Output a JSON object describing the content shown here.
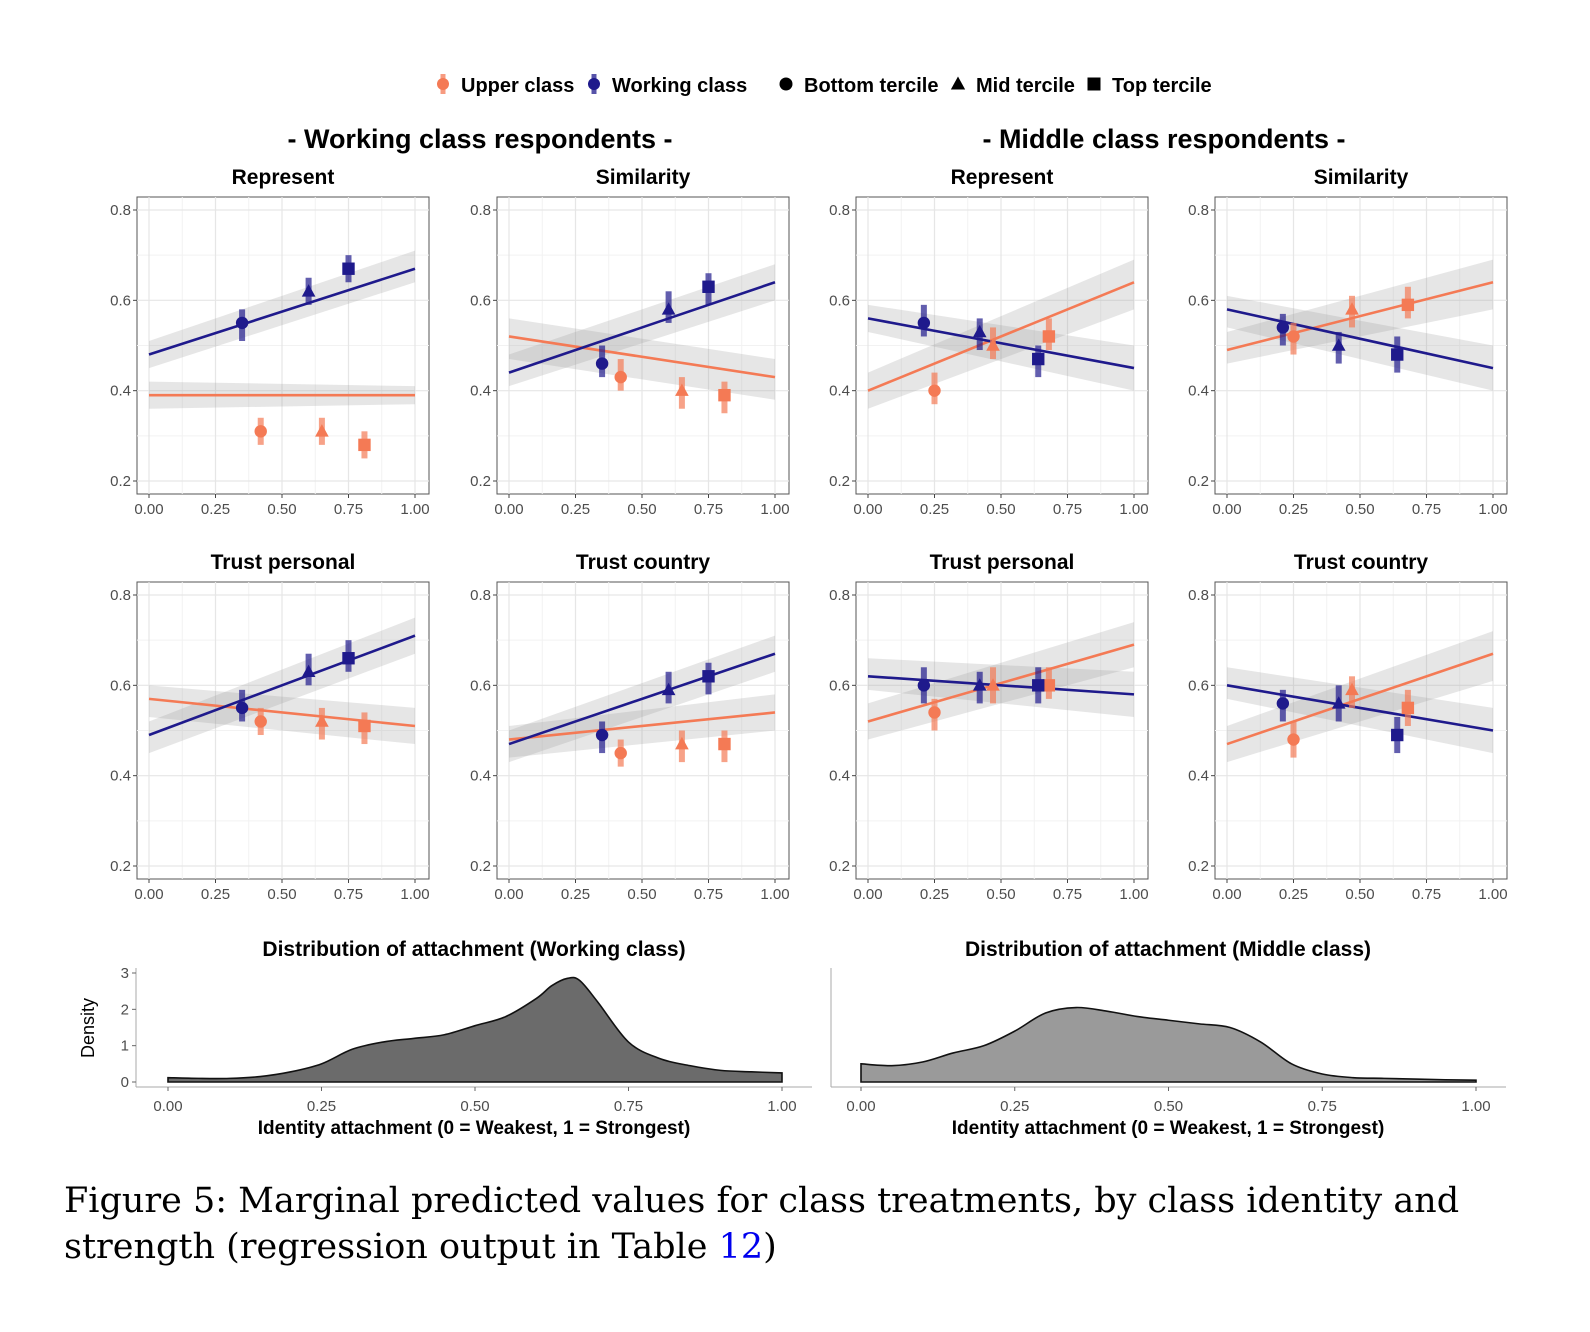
{
  "colors": {
    "upper": "#f47a55",
    "working": "#1f1a8c",
    "density_left": "#6b6b6b",
    "density_right": "#9a9a9a"
  },
  "legend": {
    "classes": [
      {
        "label": "Upper class",
        "color": "#f47a55"
      },
      {
        "label": "Working class",
        "color": "#1f1a8c"
      }
    ],
    "terciles": [
      {
        "label": "Bottom tercile",
        "shape": "circle"
      },
      {
        "label": "Mid tercile",
        "shape": "triangle"
      },
      {
        "label": "Top tercile",
        "shape": "square"
      }
    ]
  },
  "group_titles": [
    "- Working class respondents -",
    "- Middle class respondents -"
  ],
  "chart_data": [
    {
      "type": "scatter",
      "group": "Working class respondents",
      "title": "Represent",
      "xlim": [
        0,
        1
      ],
      "ylim": [
        0.2,
        0.8
      ],
      "x_ticks": [
        "0.00",
        "0.25",
        "0.50",
        "0.75",
        "1.00"
      ],
      "y_ticks": [
        "0.2",
        "0.4",
        "0.6",
        "0.8"
      ],
      "series": [
        {
          "name": "Upper class",
          "points": [
            {
              "tercile": "Bottom tercile",
              "x": 0.42,
              "y": 0.31,
              "lo": 0.28,
              "hi": 0.34
            },
            {
              "tercile": "Mid tercile",
              "x": 0.65,
              "y": 0.31,
              "lo": 0.28,
              "hi": 0.34
            },
            {
              "tercile": "Top tercile",
              "x": 0.81,
              "y": 0.28,
              "lo": 0.25,
              "hi": 0.31
            }
          ],
          "fit": [
            0.39,
            0.39
          ],
          "band": [
            [
              0.36,
              0.42
            ],
            [
              0.37,
              0.41
            ]
          ]
        },
        {
          "name": "Working class",
          "points": [
            {
              "tercile": "Bottom tercile",
              "x": 0.35,
              "y": 0.55,
              "lo": 0.51,
              "hi": 0.58
            },
            {
              "tercile": "Mid tercile",
              "x": 0.6,
              "y": 0.62,
              "lo": 0.59,
              "hi": 0.65
            },
            {
              "tercile": "Top tercile",
              "x": 0.75,
              "y": 0.67,
              "lo": 0.64,
              "hi": 0.7
            }
          ],
          "fit": [
            0.48,
            0.67
          ],
          "band": [
            [
              0.45,
              0.51
            ],
            [
              0.64,
              0.71
            ]
          ]
        }
      ]
    },
    {
      "type": "scatter",
      "group": "Working class respondents",
      "title": "Similarity",
      "xlim": [
        0,
        1
      ],
      "ylim": [
        0.2,
        0.8
      ],
      "x_ticks": [
        "0.00",
        "0.25",
        "0.50",
        "0.75",
        "1.00"
      ],
      "y_ticks": [
        "0.2",
        "0.4",
        "0.6",
        "0.8"
      ],
      "series": [
        {
          "name": "Upper class",
          "points": [
            {
              "tercile": "Bottom tercile",
              "x": 0.42,
              "y": 0.43,
              "lo": 0.4,
              "hi": 0.47
            },
            {
              "tercile": "Mid tercile",
              "x": 0.65,
              "y": 0.4,
              "lo": 0.36,
              "hi": 0.43
            },
            {
              "tercile": "Top tercile",
              "x": 0.81,
              "y": 0.39,
              "lo": 0.35,
              "hi": 0.42
            }
          ],
          "fit": [
            0.52,
            0.43
          ],
          "band": [
            [
              0.47,
              0.56
            ],
            [
              0.38,
              0.47
            ]
          ]
        },
        {
          "name": "Working class",
          "points": [
            {
              "tercile": "Bottom tercile",
              "x": 0.35,
              "y": 0.46,
              "lo": 0.43,
              "hi": 0.5
            },
            {
              "tercile": "Mid tercile",
              "x": 0.6,
              "y": 0.58,
              "lo": 0.55,
              "hi": 0.62
            },
            {
              "tercile": "Top tercile",
              "x": 0.75,
              "y": 0.63,
              "lo": 0.59,
              "hi": 0.66
            }
          ],
          "fit": [
            0.44,
            0.64
          ],
          "band": [
            [
              0.41,
              0.48
            ],
            [
              0.6,
              0.68
            ]
          ]
        }
      ]
    },
    {
      "type": "scatter",
      "group": "Middle class respondents",
      "title": "Represent",
      "xlim": [
        0,
        1
      ],
      "ylim": [
        0.2,
        0.8
      ],
      "x_ticks": [
        "0.00",
        "0.25",
        "0.50",
        "0.75",
        "1.00"
      ],
      "y_ticks": [
        "0.2",
        "0.4",
        "0.6",
        "0.8"
      ],
      "series": [
        {
          "name": "Upper class",
          "points": [
            {
              "tercile": "Bottom tercile",
              "x": 0.25,
              "y": 0.4,
              "lo": 0.37,
              "hi": 0.44
            },
            {
              "tercile": "Mid tercile",
              "x": 0.47,
              "y": 0.5,
              "lo": 0.47,
              "hi": 0.54
            },
            {
              "tercile": "Top tercile",
              "x": 0.68,
              "y": 0.52,
              "lo": 0.49,
              "hi": 0.56
            }
          ],
          "fit": [
            0.4,
            0.64
          ],
          "band": [
            [
              0.36,
              0.44
            ],
            [
              0.58,
              0.69
            ]
          ]
        },
        {
          "name": "Working class",
          "points": [
            {
              "tercile": "Bottom tercile",
              "x": 0.21,
              "y": 0.55,
              "lo": 0.52,
              "hi": 0.59
            },
            {
              "tercile": "Mid tercile",
              "x": 0.42,
              "y": 0.53,
              "lo": 0.49,
              "hi": 0.56
            },
            {
              "tercile": "Top tercile",
              "x": 0.64,
              "y": 0.47,
              "lo": 0.43,
              "hi": 0.5
            }
          ],
          "fit": [
            0.56,
            0.45
          ],
          "band": [
            [
              0.53,
              0.59
            ],
            [
              0.4,
              0.5
            ]
          ]
        }
      ]
    },
    {
      "type": "scatter",
      "group": "Middle class respondents",
      "title": "Similarity",
      "xlim": [
        0,
        1
      ],
      "ylim": [
        0.2,
        0.8
      ],
      "x_ticks": [
        "0.00",
        "0.25",
        "0.50",
        "0.75",
        "1.00"
      ],
      "y_ticks": [
        "0.2",
        "0.4",
        "0.6",
        "0.8"
      ],
      "series": [
        {
          "name": "Upper class",
          "points": [
            {
              "tercile": "Bottom tercile",
              "x": 0.25,
              "y": 0.52,
              "lo": 0.48,
              "hi": 0.55
            },
            {
              "tercile": "Mid tercile",
              "x": 0.47,
              "y": 0.58,
              "lo": 0.54,
              "hi": 0.61
            },
            {
              "tercile": "Top tercile",
              "x": 0.68,
              "y": 0.59,
              "lo": 0.56,
              "hi": 0.63
            }
          ],
          "fit": [
            0.49,
            0.64
          ],
          "band": [
            [
              0.46,
              0.53
            ],
            [
              0.58,
              0.69
            ]
          ]
        },
        {
          "name": "Working class",
          "points": [
            {
              "tercile": "Bottom tercile",
              "x": 0.21,
              "y": 0.54,
              "lo": 0.5,
              "hi": 0.57
            },
            {
              "tercile": "Mid tercile",
              "x": 0.42,
              "y": 0.5,
              "lo": 0.46,
              "hi": 0.53
            },
            {
              "tercile": "Top tercile",
              "x": 0.64,
              "y": 0.48,
              "lo": 0.44,
              "hi": 0.52
            }
          ],
          "fit": [
            0.58,
            0.45
          ],
          "band": [
            [
              0.54,
              0.61
            ],
            [
              0.4,
              0.5
            ]
          ]
        }
      ]
    },
    {
      "type": "scatter",
      "group": "Working class respondents",
      "title": "Trust personal",
      "xlim": [
        0,
        1
      ],
      "ylim": [
        0.2,
        0.8
      ],
      "x_ticks": [
        "0.00",
        "0.25",
        "0.50",
        "0.75",
        "1.00"
      ],
      "y_ticks": [
        "0.2",
        "0.4",
        "0.6",
        "0.8"
      ],
      "series": [
        {
          "name": "Upper class",
          "points": [
            {
              "tercile": "Bottom tercile",
              "x": 0.42,
              "y": 0.52,
              "lo": 0.49,
              "hi": 0.55
            },
            {
              "tercile": "Mid tercile",
              "x": 0.65,
              "y": 0.52,
              "lo": 0.48,
              "hi": 0.55
            },
            {
              "tercile": "Top tercile",
              "x": 0.81,
              "y": 0.51,
              "lo": 0.47,
              "hi": 0.54
            }
          ],
          "fit": [
            0.57,
            0.51
          ],
          "band": [
            [
              0.53,
              0.6
            ],
            [
              0.47,
              0.55
            ]
          ]
        },
        {
          "name": "Working class",
          "points": [
            {
              "tercile": "Bottom tercile",
              "x": 0.35,
              "y": 0.55,
              "lo": 0.52,
              "hi": 0.59
            },
            {
              "tercile": "Mid tercile",
              "x": 0.6,
              "y": 0.63,
              "lo": 0.6,
              "hi": 0.67
            },
            {
              "tercile": "Top tercile",
              "x": 0.75,
              "y": 0.66,
              "lo": 0.63,
              "hi": 0.7
            }
          ],
          "fit": [
            0.49,
            0.71
          ],
          "band": [
            [
              0.45,
              0.52
            ],
            [
              0.67,
              0.75
            ]
          ]
        }
      ]
    },
    {
      "type": "scatter",
      "group": "Working class respondents",
      "title": "Trust country",
      "xlim": [
        0,
        1
      ],
      "ylim": [
        0.2,
        0.8
      ],
      "x_ticks": [
        "0.00",
        "0.25",
        "0.50",
        "0.75",
        "1.00"
      ],
      "y_ticks": [
        "0.2",
        "0.4",
        "0.6",
        "0.8"
      ],
      "series": [
        {
          "name": "Upper class",
          "points": [
            {
              "tercile": "Bottom tercile",
              "x": 0.42,
              "y": 0.45,
              "lo": 0.42,
              "hi": 0.48
            },
            {
              "tercile": "Mid tercile",
              "x": 0.65,
              "y": 0.47,
              "lo": 0.43,
              "hi": 0.5
            },
            {
              "tercile": "Top tercile",
              "x": 0.81,
              "y": 0.47,
              "lo": 0.43,
              "hi": 0.5
            }
          ],
          "fit": [
            0.48,
            0.54
          ],
          "band": [
            [
              0.44,
              0.51
            ],
            [
              0.5,
              0.58
            ]
          ]
        },
        {
          "name": "Working class",
          "points": [
            {
              "tercile": "Bottom tercile",
              "x": 0.35,
              "y": 0.49,
              "lo": 0.45,
              "hi": 0.52
            },
            {
              "tercile": "Mid tercile",
              "x": 0.6,
              "y": 0.59,
              "lo": 0.56,
              "hi": 0.63
            },
            {
              "tercile": "Top tercile",
              "x": 0.75,
              "y": 0.62,
              "lo": 0.58,
              "hi": 0.65
            }
          ],
          "fit": [
            0.47,
            0.67
          ],
          "band": [
            [
              0.43,
              0.5
            ],
            [
              0.63,
              0.71
            ]
          ]
        }
      ]
    },
    {
      "type": "scatter",
      "group": "Middle class respondents",
      "title": "Trust personal",
      "xlim": [
        0,
        1
      ],
      "ylim": [
        0.2,
        0.8
      ],
      "x_ticks": [
        "0.00",
        "0.25",
        "0.50",
        "0.75",
        "1.00"
      ],
      "y_ticks": [
        "0.2",
        "0.4",
        "0.6",
        "0.8"
      ],
      "series": [
        {
          "name": "Upper class",
          "points": [
            {
              "tercile": "Bottom tercile",
              "x": 0.25,
              "y": 0.54,
              "lo": 0.5,
              "hi": 0.57
            },
            {
              "tercile": "Mid tercile",
              "x": 0.47,
              "y": 0.6,
              "lo": 0.56,
              "hi": 0.64
            },
            {
              "tercile": "Top tercile",
              "x": 0.68,
              "y": 0.6,
              "lo": 0.57,
              "hi": 0.64
            }
          ],
          "fit": [
            0.52,
            0.69
          ],
          "band": [
            [
              0.48,
              0.56
            ],
            [
              0.64,
              0.74
            ]
          ]
        },
        {
          "name": "Working class",
          "points": [
            {
              "tercile": "Bottom tercile",
              "x": 0.21,
              "y": 0.6,
              "lo": 0.56,
              "hi": 0.64
            },
            {
              "tercile": "Mid tercile",
              "x": 0.42,
              "y": 0.6,
              "lo": 0.56,
              "hi": 0.63
            },
            {
              "tercile": "Top tercile",
              "x": 0.64,
              "y": 0.6,
              "lo": 0.56,
              "hi": 0.64
            }
          ],
          "fit": [
            0.62,
            0.58
          ],
          "band": [
            [
              0.59,
              0.66
            ],
            [
              0.53,
              0.63
            ]
          ]
        }
      ]
    },
    {
      "type": "scatter",
      "group": "Middle class respondents",
      "title": "Trust country",
      "xlim": [
        0,
        1
      ],
      "ylim": [
        0.2,
        0.8
      ],
      "x_ticks": [
        "0.00",
        "0.25",
        "0.50",
        "0.75",
        "1.00"
      ],
      "y_ticks": [
        "0.2",
        "0.4",
        "0.6",
        "0.8"
      ],
      "series": [
        {
          "name": "Upper class",
          "points": [
            {
              "tercile": "Bottom tercile",
              "x": 0.25,
              "y": 0.48,
              "lo": 0.44,
              "hi": 0.52
            },
            {
              "tercile": "Mid tercile",
              "x": 0.47,
              "y": 0.59,
              "lo": 0.55,
              "hi": 0.62
            },
            {
              "tercile": "Top tercile",
              "x": 0.68,
              "y": 0.55,
              "lo": 0.51,
              "hi": 0.59
            }
          ],
          "fit": [
            0.47,
            0.67
          ],
          "band": [
            [
              0.43,
              0.51
            ],
            [
              0.61,
              0.72
            ]
          ]
        },
        {
          "name": "Working class",
          "points": [
            {
              "tercile": "Bottom tercile",
              "x": 0.21,
              "y": 0.56,
              "lo": 0.52,
              "hi": 0.59
            },
            {
              "tercile": "Mid tercile",
              "x": 0.42,
              "y": 0.56,
              "lo": 0.52,
              "hi": 0.6
            },
            {
              "tercile": "Top tercile",
              "x": 0.64,
              "y": 0.49,
              "lo": 0.45,
              "hi": 0.53
            }
          ],
          "fit": [
            0.6,
            0.5
          ],
          "band": [
            [
              0.57,
              0.64
            ],
            [
              0.45,
              0.55
            ]
          ]
        }
      ]
    },
    {
      "type": "area",
      "title": "Distribution of attachment (Working class)",
      "xlabel": "Identity attachment (0 = Weakest, 1 = Strongest)",
      "ylabel": "Density",
      "xlim": [
        0,
        1
      ],
      "ylim": [
        0,
        3
      ],
      "x_ticks": [
        "0.00",
        "0.25",
        "0.50",
        "0.75",
        "1.00"
      ],
      "y_ticks": [
        "0",
        "1",
        "2",
        "3"
      ],
      "x": [
        0,
        0.05,
        0.1,
        0.15,
        0.2,
        0.25,
        0.3,
        0.35,
        0.4,
        0.45,
        0.5,
        0.55,
        0.6,
        0.625,
        0.65,
        0.67,
        0.7,
        0.75,
        0.8,
        0.85,
        0.9,
        0.95,
        1.0
      ],
      "y": [
        0.12,
        0.1,
        0.1,
        0.15,
        0.28,
        0.5,
        0.9,
        1.1,
        1.2,
        1.3,
        1.55,
        1.8,
        2.3,
        2.65,
        2.85,
        2.8,
        2.2,
        1.1,
        0.65,
        0.45,
        0.32,
        0.28,
        0.25
      ]
    },
    {
      "type": "area",
      "title": "Distribution of attachment (Middle class)",
      "xlabel": "Identity attachment (0 = Weakest, 1 = Strongest)",
      "ylabel": "",
      "xlim": [
        0,
        1
      ],
      "ylim": [
        0,
        3
      ],
      "x_ticks": [
        "0.00",
        "0.25",
        "0.50",
        "0.75",
        "1.00"
      ],
      "y_ticks": [],
      "x": [
        0,
        0.05,
        0.1,
        0.15,
        0.2,
        0.25,
        0.3,
        0.35,
        0.4,
        0.45,
        0.5,
        0.55,
        0.6,
        0.65,
        0.7,
        0.75,
        0.8,
        0.85,
        0.9,
        0.95,
        1.0
      ],
      "y": [
        0.5,
        0.45,
        0.55,
        0.8,
        1.0,
        1.4,
        1.9,
        2.05,
        1.95,
        1.8,
        1.7,
        1.6,
        1.5,
        1.1,
        0.5,
        0.22,
        0.12,
        0.1,
        0.08,
        0.06,
        0.05
      ]
    }
  ],
  "caption": {
    "text": "Figure 5: Marginal predicted values for class treatments, by class identity and strength (regression output in Table ",
    "ref": "12",
    "end": ")"
  }
}
